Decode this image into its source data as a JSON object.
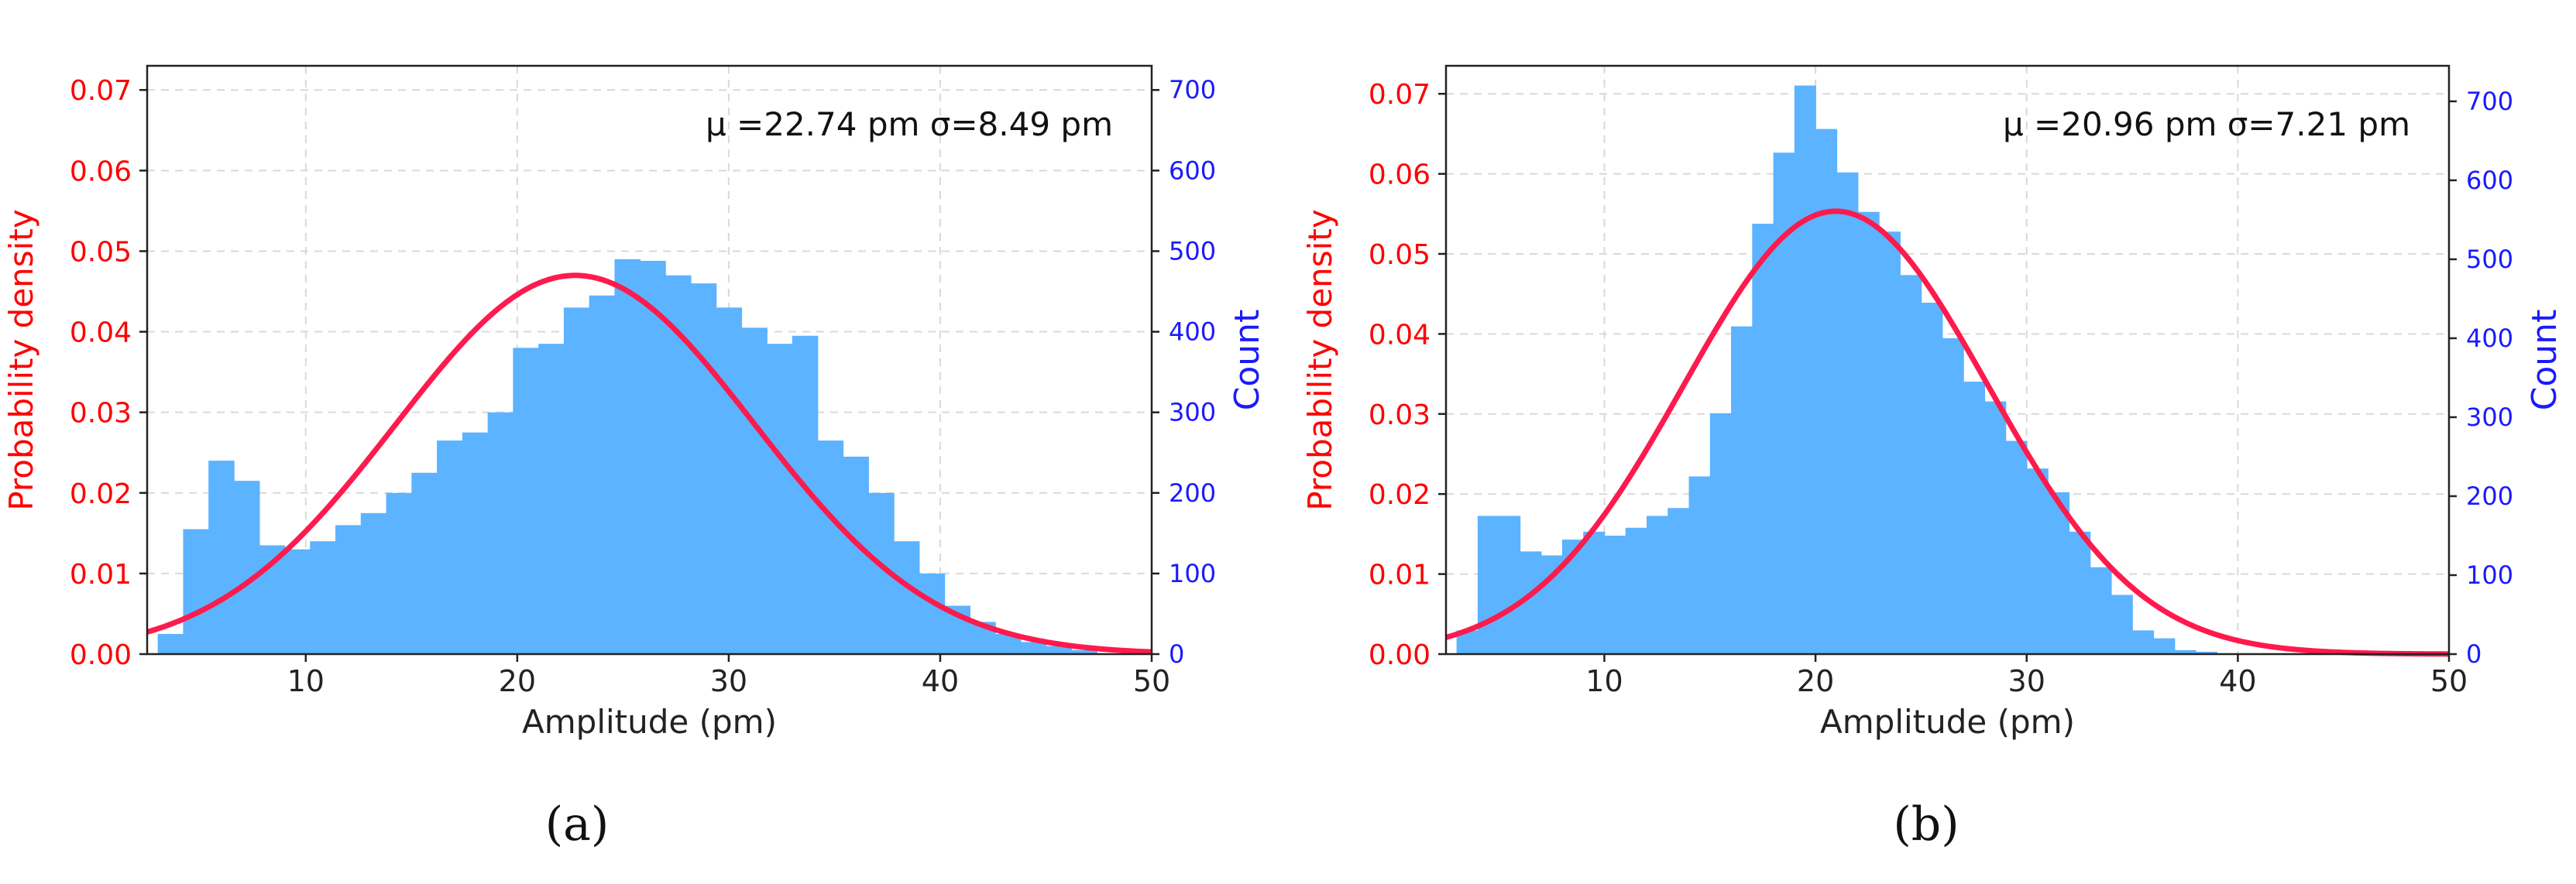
{
  "chart_data": [
    {
      "type": "bar",
      "panel_label": "(a)",
      "xlabel": "Amplitude (pm)",
      "ylabel_left": "Probability density",
      "ylabel_right": "Count",
      "annotation": "μ =22.74 pm σ=8.49 pm",
      "xlim": [
        2.5,
        50
      ],
      "ylim_left": [
        0,
        0.073
      ],
      "ylim_right": [
        0,
        730
      ],
      "x_ticks": [
        10,
        20,
        30,
        40,
        50
      ],
      "y_ticks_left": [
        "0.00",
        "0.01",
        "0.02",
        "0.03",
        "0.04",
        "0.05",
        "0.06",
        "0.07"
      ],
      "y_ticks_right": [
        "0",
        "100",
        "200",
        "300",
        "400",
        "500",
        "600",
        "700"
      ],
      "bin_width": 1.2,
      "bin_start": 3.0,
      "counts": [
        25,
        155,
        240,
        215,
        135,
        130,
        140,
        160,
        175,
        200,
        225,
        265,
        275,
        300,
        380,
        385,
        430,
        445,
        490,
        488,
        470,
        460,
        430,
        405,
        385,
        395,
        265,
        245,
        200,
        140,
        100,
        60,
        40,
        25,
        15,
        10,
        5
      ],
      "normal_fit": {
        "mu": 22.74,
        "sigma": 8.49
      }
    },
    {
      "type": "bar",
      "panel_label": "(b)",
      "xlabel": "Amplitude (pm)",
      "ylabel_left": "Probability density",
      "ylabel_right": "Count",
      "annotation": "μ =20.96 pm σ=7.21 pm",
      "xlim": [
        2.5,
        50
      ],
      "ylim_left": [
        0,
        0.0735
      ],
      "ylim_right": [
        0,
        745
      ],
      "x_ticks": [
        10,
        20,
        30,
        40,
        50
      ],
      "y_ticks_left": [
        "0.00",
        "0.01",
        "0.02",
        "0.03",
        "0.04",
        "0.05",
        "0.06",
        "0.07"
      ],
      "y_ticks_right": [
        "0",
        "100",
        "200",
        "300",
        "400",
        "500",
        "600",
        "700"
      ],
      "bin_width": 1.0,
      "bin_start": 3.0,
      "counts": [
        30,
        175,
        175,
        130,
        125,
        145,
        155,
        150,
        160,
        175,
        185,
        225,
        305,
        415,
        545,
        635,
        720,
        665,
        610,
        560,
        535,
        480,
        445,
        400,
        345,
        320,
        270,
        235,
        205,
        155,
        110,
        75,
        30,
        20,
        5,
        3
      ],
      "normal_fit": {
        "mu": 20.96,
        "sigma": 7.21
      }
    }
  ]
}
